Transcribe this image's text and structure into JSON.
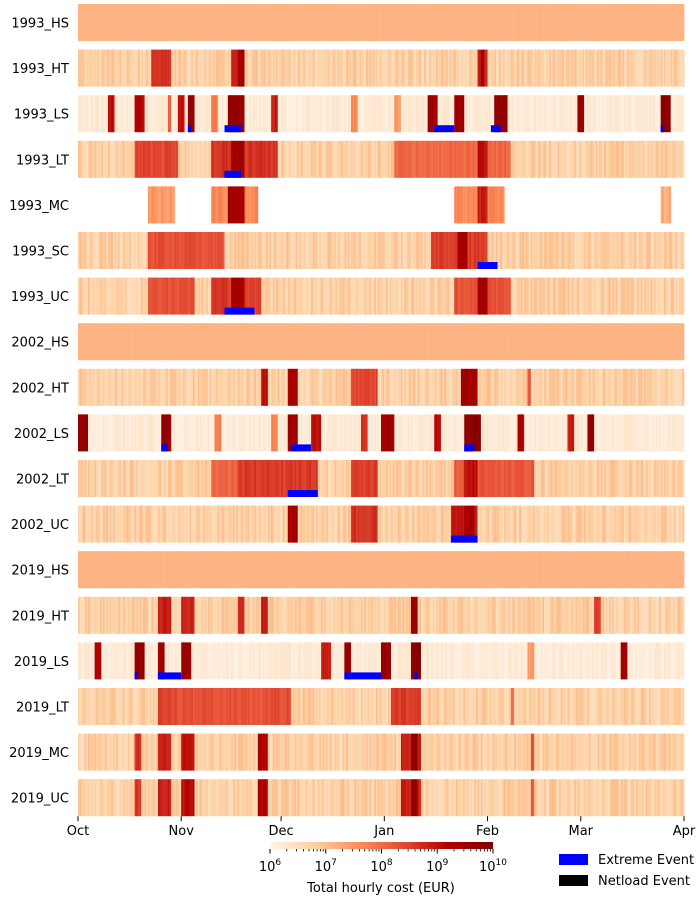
{
  "chart_data": {
    "type": "heatmap",
    "title": "",
    "xlabel": "",
    "ylabel": "",
    "xlim": [
      0,
      182
    ],
    "x_ticks": [
      {
        "day": 0,
        "label": "Oct"
      },
      {
        "day": 31,
        "label": "Nov"
      },
      {
        "day": 61,
        "label": "Dec"
      },
      {
        "day": 92,
        "label": "Jan"
      },
      {
        "day": 123,
        "label": "Feb"
      },
      {
        "day": 151,
        "label": "Mar"
      },
      {
        "day": 182,
        "label": "Apr"
      }
    ],
    "colorbar": {
      "label": "Total hourly cost (EUR)",
      "scale": "log",
      "range": [
        1000000,
        10000000000
      ],
      "ticks": [
        6,
        7,
        8,
        9,
        10
      ],
      "colors": [
        "#fff5eb",
        "#fdd0a2",
        "#fc8d59",
        "#e34a33",
        "#b30000",
        "#7f0000"
      ]
    },
    "legend": {
      "placement": "bottom-right",
      "items": [
        {
          "label": "Extreme Event",
          "color": "#0000ff"
        },
        {
          "label": "Netload Event",
          "color": "#000000"
        }
      ]
    },
    "series": [
      {
        "name": "1993_HS",
        "profile": "flat",
        "netload": [
          44,
          51
        ],
        "extreme": [],
        "spikes": []
      },
      {
        "name": "1993_HT",
        "profile": "mod",
        "netload": [
          26,
          32
        ],
        "extreme": [],
        "spikes": [
          [
            22,
            28,
            0.72
          ],
          [
            46,
            49,
            0.78
          ],
          [
            120,
            123,
            0.75
          ],
          [
            48,
            50,
            0.9
          ],
          [
            121,
            122,
            0.9
          ]
        ]
      },
      {
        "name": "1993_LS",
        "profile": "light",
        "netload": [],
        "extreme": [
          [
            33,
            34
          ],
          [
            44,
            49
          ],
          [
            107,
            113
          ],
          [
            124,
            127
          ],
          [
            175,
            176
          ]
        ],
        "spikes": [
          [
            9,
            11,
            0.8
          ],
          [
            17,
            20,
            0.85
          ],
          [
            27,
            28,
            0.6
          ],
          [
            30,
            32,
            0.8
          ],
          [
            33,
            35,
            0.95
          ],
          [
            45,
            50,
            0.95
          ],
          [
            58,
            60,
            0.75
          ],
          [
            105,
            108,
            0.9
          ],
          [
            113,
            116,
            0.95
          ],
          [
            125,
            129,
            0.95
          ],
          [
            150,
            152,
            0.95
          ],
          [
            175,
            178,
            1.0
          ],
          [
            40,
            42,
            0.5
          ],
          [
            82,
            84,
            0.45
          ],
          [
            95,
            97,
            0.4
          ]
        ]
      },
      {
        "name": "1993_LT",
        "profile": "mod",
        "netload": [
          44,
          51
        ],
        "extreme": [
          [
            44,
            49
          ]
        ],
        "spikes": [
          [
            17,
            30,
            0.65
          ],
          [
            40,
            60,
            0.7
          ],
          [
            95,
            130,
            0.55
          ],
          [
            46,
            50,
            0.9
          ],
          [
            120,
            123,
            0.8
          ]
        ]
      },
      {
        "name": "1993_MC",
        "profile": "sparse",
        "netload": [
          44,
          51
        ],
        "extreme": [],
        "spikes": [
          [
            21,
            29,
            0.4
          ],
          [
            40,
            54,
            0.45
          ],
          [
            45,
            50,
            0.9
          ],
          [
            113,
            128,
            0.45
          ],
          [
            120,
            123,
            0.75
          ],
          [
            175,
            178,
            0.35
          ]
        ]
      },
      {
        "name": "1993_SC",
        "profile": "mod",
        "netload": [
          25,
          31
        ],
        "extreme": [
          [
            120,
            126
          ]
        ],
        "spikes": [
          [
            21,
            44,
            0.62
          ],
          [
            106,
            123,
            0.68
          ],
          [
            114,
            117,
            0.9
          ]
        ]
      },
      {
        "name": "1993_UC",
        "profile": "mod",
        "netload": [
          44,
          51
        ],
        "extreme": [
          [
            44,
            53
          ]
        ],
        "spikes": [
          [
            21,
            35,
            0.62
          ],
          [
            40,
            55,
            0.68
          ],
          [
            46,
            50,
            0.88
          ],
          [
            113,
            130,
            0.62
          ],
          [
            120,
            123,
            0.9
          ]
        ]
      },
      {
        "name": "2002_HS",
        "profile": "flat",
        "netload": [
          83,
          90
        ],
        "extreme": [],
        "spikes": []
      },
      {
        "name": "2002_HT",
        "profile": "mod",
        "netload": [
          82,
          88
        ],
        "extreme": [],
        "spikes": [
          [
            55,
            57,
            0.8
          ],
          [
            63,
            66,
            0.88
          ],
          [
            82,
            90,
            0.65
          ],
          [
            115,
            120,
            0.9
          ],
          [
            135,
            136,
            0.6
          ]
        ]
      },
      {
        "name": "2002_LS",
        "profile": "light",
        "netload": [],
        "extreme": [
          [
            25,
            27
          ],
          [
            64,
            70
          ],
          [
            116,
            119
          ]
        ],
        "spikes": [
          [
            0,
            3,
            0.95
          ],
          [
            25,
            28,
            0.95
          ],
          [
            63,
            66,
            0.9
          ],
          [
            70,
            73,
            0.8
          ],
          [
            85,
            87,
            0.7
          ],
          [
            91,
            95,
            0.9
          ],
          [
            107,
            109,
            0.8
          ],
          [
            116,
            121,
            1.0
          ],
          [
            132,
            134,
            0.85
          ],
          [
            147,
            149,
            0.75
          ],
          [
            153,
            155,
            0.95
          ],
          [
            41,
            43,
            0.5
          ],
          [
            58,
            60,
            0.45
          ]
        ]
      },
      {
        "name": "2002_LT",
        "profile": "mod",
        "netload": [
          83,
          90
        ],
        "extreme": [
          [
            63,
            72
          ]
        ],
        "spikes": [
          [
            40,
            48,
            0.55
          ],
          [
            48,
            72,
            0.68
          ],
          [
            82,
            90,
            0.68
          ],
          [
            113,
            137,
            0.6
          ],
          [
            116,
            120,
            0.8
          ]
        ]
      },
      {
        "name": "2002_UC",
        "profile": "mod",
        "netload": [
          83,
          90
        ],
        "extreme": [
          [
            112,
            120
          ]
        ],
        "spikes": [
          [
            63,
            66,
            0.88
          ],
          [
            82,
            90,
            0.7
          ],
          [
            112,
            120,
            0.78
          ],
          [
            116,
            119,
            0.9
          ]
        ]
      },
      {
        "name": "2019_HS",
        "profile": "flat",
        "netload": [
          51,
          57
        ],
        "extreme": [],
        "spikes": []
      },
      {
        "name": "2019_HT",
        "profile": "mod",
        "netload": [
          39,
          45
        ],
        "extreme": [],
        "spikes": [
          [
            24,
            28,
            0.75
          ],
          [
            31,
            35,
            0.75
          ],
          [
            48,
            50,
            0.7
          ],
          [
            55,
            57,
            0.75
          ],
          [
            100,
            102,
            0.95
          ],
          [
            155,
            157,
            0.7
          ],
          [
            183,
            185,
            0.8
          ]
        ]
      },
      {
        "name": "2019_LS",
        "profile": "light",
        "netload": [],
        "extreme": [
          [
            17,
            18
          ],
          [
            24,
            31
          ],
          [
            80,
            91
          ],
          [
            101,
            102
          ]
        ],
        "spikes": [
          [
            5,
            7,
            0.85
          ],
          [
            17,
            20,
            0.95
          ],
          [
            24,
            26,
            0.9
          ],
          [
            31,
            34,
            0.95
          ],
          [
            73,
            76,
            0.75
          ],
          [
            80,
            82,
            0.95
          ],
          [
            91,
            94,
            0.95
          ],
          [
            100,
            103,
            1.0
          ],
          [
            135,
            137,
            0.4
          ],
          [
            163,
            165,
            0.9
          ],
          [
            182,
            184,
            0.9
          ]
        ]
      },
      {
        "name": "2019_LT",
        "profile": "mod",
        "netload": [
          96,
          102
        ],
        "extreme": [],
        "spikes": [
          [
            24,
            30,
            0.65
          ],
          [
            30,
            64,
            0.62
          ],
          [
            94,
            103,
            0.68
          ],
          [
            130,
            131,
            0.55
          ]
        ]
      },
      {
        "name": "2019_MC",
        "profile": "mod",
        "netload": [
          37,
          44
        ],
        "extreme": [],
        "spikes": [
          [
            17,
            19,
            0.7
          ],
          [
            24,
            28,
            0.75
          ],
          [
            31,
            35,
            0.8
          ],
          [
            54,
            57,
            0.85
          ],
          [
            97,
            103,
            0.75
          ],
          [
            100,
            102,
            0.95
          ],
          [
            136,
            137,
            0.6
          ]
        ]
      },
      {
        "name": "2019_UC",
        "profile": "mod",
        "netload": [
          37,
          44
        ],
        "extreme": [],
        "spikes": [
          [
            17,
            19,
            0.7
          ],
          [
            24,
            28,
            0.75
          ],
          [
            31,
            35,
            0.8
          ],
          [
            54,
            57,
            0.85
          ],
          [
            97,
            103,
            0.75
          ],
          [
            100,
            102,
            0.95
          ],
          [
            136,
            137,
            0.6
          ]
        ]
      }
    ]
  }
}
